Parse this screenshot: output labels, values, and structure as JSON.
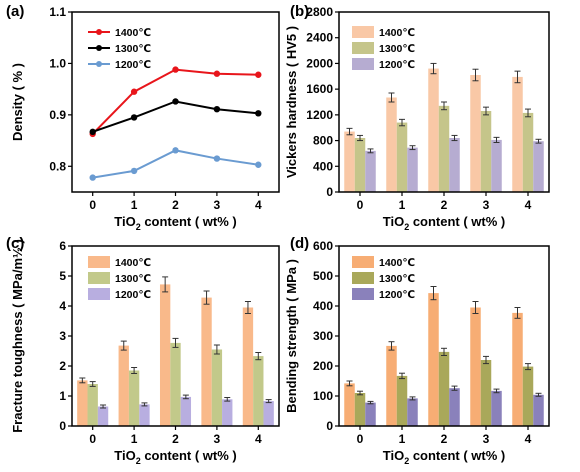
{
  "chart_data": [
    {
      "type": "line",
      "panel": "(a)",
      "categories": [
        "0",
        "1",
        "2",
        "3",
        "4"
      ],
      "x": [
        0,
        1,
        2,
        3,
        4
      ],
      "xlabel_main": "TiO",
      "xlabel_sub": "2",
      "xlabel_rest": " content ( wt% )",
      "ylabel": "Density ( % )",
      "ylim": [
        0.75,
        1.1
      ],
      "yticks": [
        0.8,
        0.9,
        1.0,
        1.1
      ],
      "ytick_labels": [
        "0.8",
        "0.9",
        "1.0",
        "1.1"
      ],
      "legend": "top-left",
      "series": [
        {
          "name": "1400℃",
          "color": "#e8151b",
          "values": [
            0.863,
            0.945,
            0.988,
            0.98,
            0.978
          ]
        },
        {
          "name": "1300℃",
          "color": "#000000",
          "values": [
            0.867,
            0.895,
            0.926,
            0.911,
            0.903
          ]
        },
        {
          "name": "1200℃",
          "color": "#6a9bd1",
          "values": [
            0.778,
            0.791,
            0.831,
            0.815,
            0.803
          ]
        }
      ]
    },
    {
      "type": "bar",
      "panel": "(b)",
      "categories": [
        "0",
        "1",
        "2",
        "3",
        "4"
      ],
      "xlabel_main": "TiO",
      "xlabel_sub": "2",
      "xlabel_rest": " content ( wt% )",
      "ylabel": "Vickers hardness ( HV5 )",
      "ylim": [
        0,
        2800
      ],
      "yticks": [
        0,
        400,
        800,
        1200,
        1600,
        2000,
        2400,
        2800
      ],
      "ytick_labels": [
        "0",
        "400",
        "800",
        "1200",
        "1600",
        "2000",
        "2400",
        "2800"
      ],
      "legend": "top-left",
      "series": [
        {
          "name": "1400℃",
          "color": "#f9c8a6",
          "values": [
            940,
            1470,
            1920,
            1820,
            1790
          ],
          "errors": [
            50,
            70,
            80,
            90,
            90
          ]
        },
        {
          "name": "1300℃",
          "color": "#c5c58a",
          "values": [
            840,
            1080,
            1340,
            1260,
            1230
          ],
          "errors": [
            40,
            50,
            60,
            60,
            60
          ]
        },
        {
          "name": "1200℃",
          "color": "#b6acd1",
          "values": [
            640,
            690,
            840,
            810,
            790
          ],
          "errors": [
            30,
            30,
            40,
            40,
            30
          ]
        }
      ]
    },
    {
      "type": "bar",
      "panel": "(c)",
      "categories": [
        "0",
        "1",
        "2",
        "3",
        "4"
      ],
      "xlabel_main": "TiO",
      "xlabel_sub": "2",
      "xlabel_rest": " content ( wt% )",
      "ylabel": "Fracture toughness ( MPa/m½ )",
      "ylim": [
        0,
        6
      ],
      "yticks": [
        0,
        1,
        2,
        3,
        4,
        5,
        6
      ],
      "ytick_labels": [
        "0",
        "1",
        "2",
        "3",
        "4",
        "5",
        "6"
      ],
      "legend": "top-left",
      "series": [
        {
          "name": "1400℃",
          "color": "#f9b98a",
          "values": [
            1.52,
            2.68,
            4.72,
            4.28,
            3.95
          ],
          "errors": [
            0.08,
            0.15,
            0.25,
            0.22,
            0.2
          ]
        },
        {
          "name": "1300℃",
          "color": "#c2c98a",
          "values": [
            1.4,
            1.85,
            2.77,
            2.55,
            2.33
          ],
          "errors": [
            0.08,
            0.1,
            0.15,
            0.15,
            0.12
          ]
        },
        {
          "name": "1200℃",
          "color": "#b8aee0",
          "values": [
            0.65,
            0.72,
            0.97,
            0.89,
            0.83
          ],
          "errors": [
            0.05,
            0.05,
            0.06,
            0.06,
            0.05
          ]
        }
      ]
    },
    {
      "type": "bar",
      "panel": "(d)",
      "categories": [
        "0",
        "1",
        "2",
        "3",
        "4"
      ],
      "xlabel_main": "TiO",
      "xlabel_sub": "2",
      "xlabel_rest": " content ( wt% )",
      "ylabel": "Bending strength ( MPa )",
      "ylim": [
        0,
        600
      ],
      "yticks": [
        0,
        100,
        200,
        300,
        400,
        500,
        600
      ],
      "ytick_labels": [
        "0",
        "100",
        "200",
        "300",
        "400",
        "500",
        "600"
      ],
      "legend": "top-left",
      "series": [
        {
          "name": "1400℃",
          "color": "#f7ad74",
          "values": [
            142,
            267,
            443,
            395,
            377
          ],
          "errors": [
            8,
            14,
            22,
            20,
            18
          ]
        },
        {
          "name": "1300℃",
          "color": "#a9a85a",
          "values": [
            110,
            167,
            247,
            220,
            198
          ],
          "errors": [
            6,
            9,
            12,
            12,
            10
          ]
        },
        {
          "name": "1200℃",
          "color": "#8a81bb",
          "values": [
            78,
            92,
            126,
            117,
            104
          ],
          "errors": [
            4,
            5,
            7,
            6,
            5
          ]
        }
      ]
    }
  ]
}
